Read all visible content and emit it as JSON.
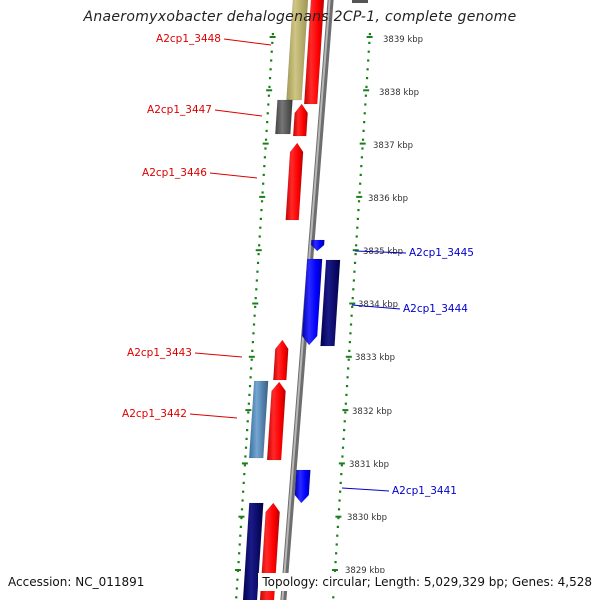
{
  "title": "Anaeromyxobacter dehalogenans 2CP-1, complete genome",
  "accession": "Accession: NC_011891",
  "summary": "Topology: circular; Length: 5,029,329 bp; Genes: 4,528",
  "colors": {
    "forward_cds": "#ff0000",
    "reverse_cds": "#0000ee",
    "forward_label": "#dd0000",
    "reverse_label": "#0000cc",
    "tick": "#1a7f1a",
    "backbone": "#999999"
  },
  "kbp_labels": [
    "3839 kbp",
    "3838 kbp",
    "3837 kbp",
    "3836 kbp",
    "3835 kbp",
    "3834 kbp",
    "3833 kbp",
    "3832 kbp",
    "3831 kbp",
    "3830 kbp",
    "3829 kbp"
  ],
  "gene_labels": [
    {
      "text": "A2cp1_3448",
      "strand": "forward"
    },
    {
      "text": "A2cp1_3447",
      "strand": "forward"
    },
    {
      "text": "A2cp1_3446",
      "strand": "forward"
    },
    {
      "text": "A2cp1_3445",
      "strand": "reverse"
    },
    {
      "text": "A2cp1_3444",
      "strand": "reverse"
    },
    {
      "text": "A2cp1_3443",
      "strand": "forward"
    },
    {
      "text": "A2cp1_3442",
      "strand": "forward"
    },
    {
      "text": "A2cp1_3441",
      "strand": "reverse"
    }
  ]
}
